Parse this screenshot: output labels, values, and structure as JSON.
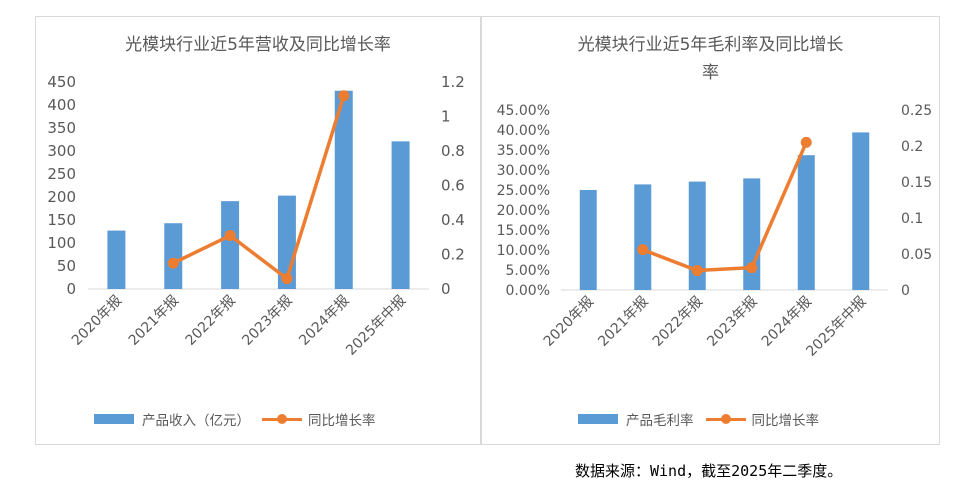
{
  "left_chart": {
    "title": "光模块行业近5年营收及同比增长率",
    "legend": {
      "bar_label": "产品收入（亿元）",
      "line_label": "同比增长率"
    }
  },
  "right_chart": {
    "title_line1": "光模块行业近5年毛利率及同比增长",
    "title_line2": "率",
    "legend": {
      "bar_label": "产品毛利率",
      "line_label": "同比增长率"
    }
  },
  "source_note": "数据来源：Wind，截至2025年二季度。",
  "colors": {
    "bar": "#5B9BD5",
    "line": "#ED7D31",
    "axis": "#d9d9d9",
    "text": "#595959"
  },
  "chart_data": [
    {
      "type": "bar",
      "title": "光模块行业近5年营收及同比增长率",
      "categories": [
        "2020年报",
        "2021年报",
        "2022年报",
        "2023年报",
        "2024年报",
        "2025年中报"
      ],
      "series": [
        {
          "name": "产品收入（亿元）",
          "type": "bar",
          "axis": "left",
          "values": [
            127,
            143,
            191,
            203,
            431,
            321
          ]
        },
        {
          "name": "同比增长率",
          "type": "line",
          "axis": "right",
          "values": [
            null,
            0.15,
            0.31,
            0.06,
            1.12,
            null
          ]
        }
      ],
      "y_left": {
        "min": 0,
        "max": 450,
        "ticks": [
          "0",
          "50",
          "100",
          "150",
          "200",
          "250",
          "300",
          "350",
          "400",
          "450"
        ]
      },
      "y_right": {
        "min": 0,
        "max": 1.2,
        "ticks": [
          "0",
          "0.2",
          "0.4",
          "0.6",
          "0.8",
          "1",
          "1.2"
        ]
      },
      "grid": false,
      "legend_position": "bottom"
    },
    {
      "type": "bar",
      "title": "光模块行业近5年毛利率及同比增长率",
      "categories": [
        "2020年报",
        "2021年报",
        "2022年报",
        "2023年报",
        "2024年报",
        "2025年中报"
      ],
      "series": [
        {
          "name": "产品毛利率",
          "type": "bar",
          "axis": "left",
          "values": [
            0.25,
            0.264,
            0.271,
            0.279,
            0.337,
            0.394
          ]
        },
        {
          "name": "同比增长率",
          "type": "line",
          "axis": "right",
          "values": [
            null,
            0.056,
            0.027,
            0.031,
            0.205,
            null
          ]
        }
      ],
      "y_left": {
        "min": 0,
        "max": 0.45,
        "ticks": [
          "0.00%",
          "5.00%",
          "10.00%",
          "15.00%",
          "20.00%",
          "25.00%",
          "30.00%",
          "35.00%",
          "40.00%",
          "45.00%"
        ]
      },
      "y_right": {
        "min": 0,
        "max": 0.25,
        "ticks": [
          "0",
          "0.05",
          "0.1",
          "0.15",
          "0.2",
          "0.25"
        ]
      },
      "grid": false,
      "legend_position": "bottom"
    }
  ]
}
